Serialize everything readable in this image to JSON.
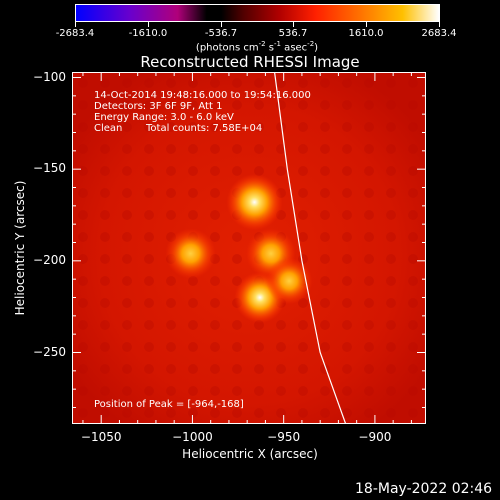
{
  "colorbar": {
    "ticks": [
      "-2683.4",
      "-1610.0",
      "-536.7",
      "536.7",
      "1610.0",
      "2683.4"
    ],
    "units_prefix": "(photons cm",
    "units_sup1": "-2",
    "units_mid1": " s",
    "units_sup2": "-1",
    "units_mid2": " asec",
    "units_sup3": "-2",
    "units_suffix": ")"
  },
  "header": {
    "title": "Reconstructed RHESSI Image"
  },
  "annotation": {
    "time_range": "14-Oct-2014 19:48:16.000 to 19:54:16.000",
    "detectors": "Detectors: 3F 6F 9F, Att 1",
    "energy_range": "Energy Range: 3.0 - 6.0 keV",
    "method": "Clean",
    "total_counts": "Total counts: 7.58E+04",
    "peak_position": "Position of Peak = [-964,-168]"
  },
  "footer": {
    "timestamp": "18-May-2022 02:46"
  },
  "chart_data": {
    "type": "heatmap",
    "title": "Reconstructed RHESSI Image",
    "xlabel": "Heliocentric X (arcsec)",
    "ylabel": "Heliocentric Y (arcsec)",
    "xlim": [
      -1066,
      -872
    ],
    "ylim": [
      -289,
      -97
    ],
    "x_ticks": [
      -1050,
      -1000,
      -950,
      -900
    ],
    "y_ticks": [
      -100,
      -150,
      -200,
      -250
    ],
    "x_tick_labels": [
      "−1050",
      "−1000",
      "−950",
      "−900"
    ],
    "y_tick_labels": [
      "−100",
      "−150",
      "−200",
      "−250"
    ],
    "colorbar_range": [
      -2683.4,
      2683.4
    ],
    "sources": [
      {
        "x": -966,
        "y": -168,
        "intensity": 2683.4
      },
      {
        "x": -1001,
        "y": -196,
        "intensity": 1900
      },
      {
        "x": -957,
        "y": -196,
        "intensity": 1850
      },
      {
        "x": -963,
        "y": -220,
        "intensity": 2000
      },
      {
        "x": -947,
        "y": -211,
        "intensity": 1400
      }
    ],
    "limb_curve": [
      {
        "x": -955,
        "y": -97
      },
      {
        "x": -948,
        "y": -150
      },
      {
        "x": -940,
        "y": -200
      },
      {
        "x": -930,
        "y": -250
      },
      {
        "x": -916,
        "y": -289
      }
    ],
    "background": "red",
    "colors": {
      "limb": "#ffffff",
      "axes": "#ffffff"
    }
  }
}
